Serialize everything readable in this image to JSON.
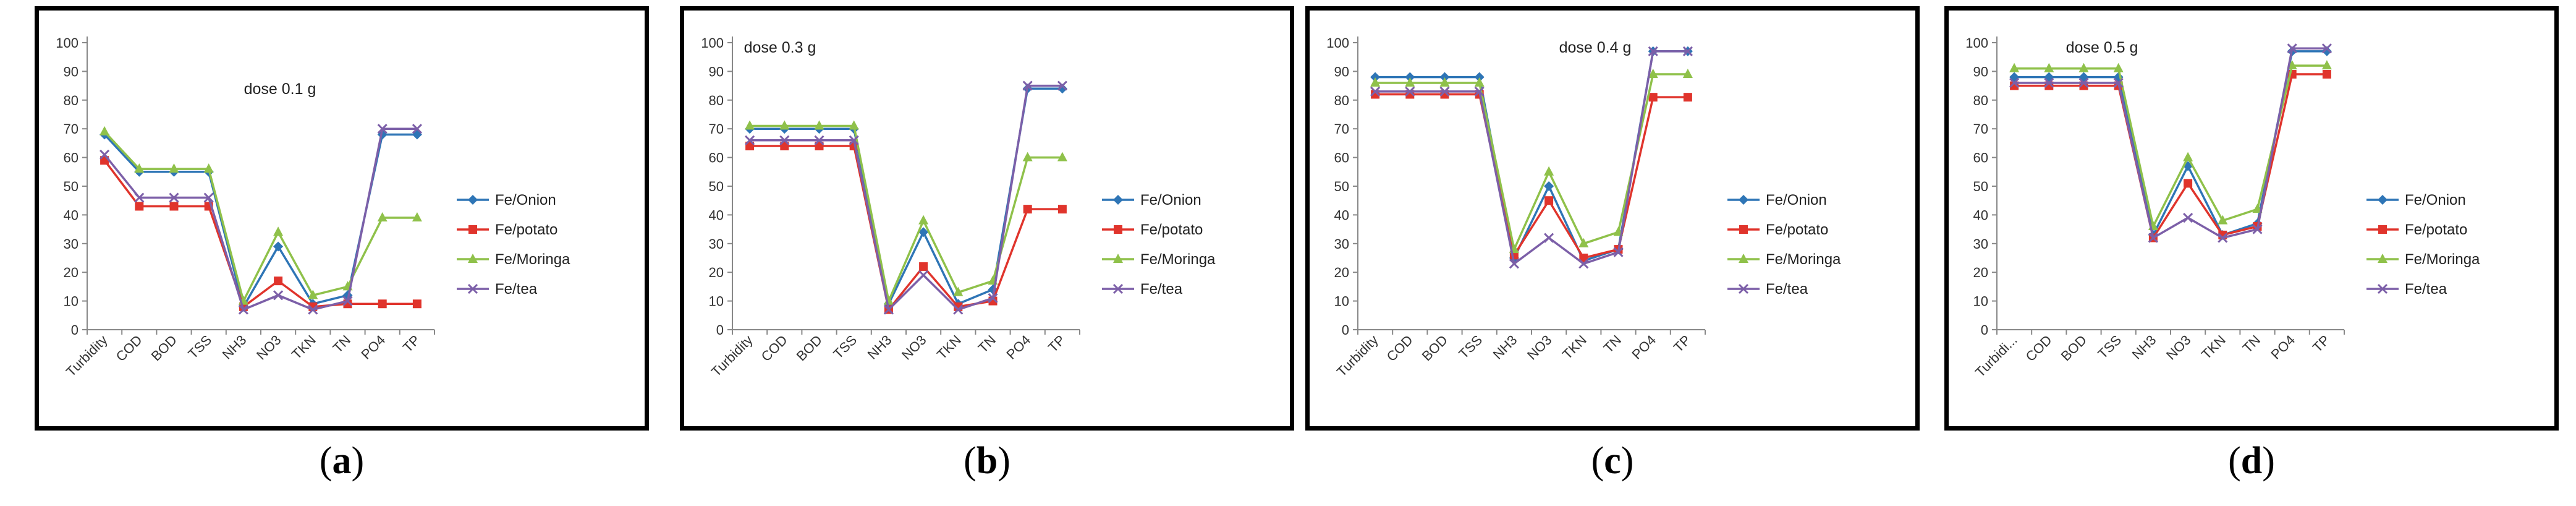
{
  "figure": {
    "panels": [
      {
        "label_open": "(",
        "label_letter": "a",
        "label_close": ")"
      },
      {
        "label_open": "(",
        "label_letter": "b",
        "label_close": ")"
      },
      {
        "label_open": "(",
        "label_letter": "c",
        "label_close": ")"
      },
      {
        "label_open": "(",
        "label_letter": "d",
        "label_close": ")"
      }
    ]
  },
  "colors": {
    "Fe/Onion": "#2e75b6",
    "Fe/potato": "#e0342c",
    "Fe/Moringa": "#8fc14a",
    "Fe/tea": "#7c5fa8"
  },
  "chart_data": [
    {
      "type": "line",
      "title": "dose 0.1 g",
      "categories": [
        "Turbidity",
        "COD",
        "BOD",
        "TSS",
        "NH3",
        "NO3",
        "TKN",
        "TN",
        "PO4",
        "TP"
      ],
      "ylim": [
        0,
        100
      ],
      "yticks": [
        0,
        10,
        20,
        30,
        40,
        50,
        60,
        70,
        80,
        90,
        100
      ],
      "legend_position": "right",
      "series": [
        {
          "name": "Fe/Onion",
          "marker": "diamond",
          "values": [
            68,
            55,
            55,
            55,
            8,
            29,
            9,
            12,
            68,
            68
          ]
        },
        {
          "name": "Fe/potato",
          "marker": "square",
          "values": [
            59,
            43,
            43,
            43,
            8,
            17,
            8,
            9,
            9,
            9
          ]
        },
        {
          "name": "Fe/Moringa",
          "marker": "triangle",
          "values": [
            69,
            56,
            56,
            56,
            10,
            34,
            12,
            15,
            39,
            39
          ]
        },
        {
          "name": "Fe/tea",
          "marker": "x",
          "values": [
            61,
            46,
            46,
            46,
            7,
            12,
            7,
            10,
            70,
            70
          ]
        }
      ]
    },
    {
      "type": "line",
      "title": "dose 0.3 g",
      "categories": [
        "Turbidity",
        "COD",
        "BOD",
        "TSS",
        "NH3",
        "NO3",
        "TKN",
        "TN",
        "PO4",
        "TP"
      ],
      "ylim": [
        0,
        100
      ],
      "yticks": [
        0,
        10,
        20,
        30,
        40,
        50,
        60,
        70,
        80,
        90,
        100
      ],
      "legend_position": "right",
      "series": [
        {
          "name": "Fe/Onion",
          "marker": "diamond",
          "values": [
            70,
            70,
            70,
            70,
            9,
            34,
            9,
            14,
            84,
            84
          ]
        },
        {
          "name": "Fe/potato",
          "marker": "square",
          "values": [
            64,
            64,
            64,
            64,
            7,
            22,
            8,
            10,
            42,
            42
          ]
        },
        {
          "name": "Fe/Moringa",
          "marker": "triangle",
          "values": [
            71,
            71,
            71,
            71,
            10,
            38,
            13,
            17,
            60,
            60
          ]
        },
        {
          "name": "Fe/tea",
          "marker": "x",
          "values": [
            66,
            66,
            66,
            66,
            7,
            19,
            7,
            11,
            85,
            85
          ]
        }
      ]
    },
    {
      "type": "line",
      "title": "dose 0.4 g",
      "categories": [
        "Turbidity",
        "COD",
        "BOD",
        "TSS",
        "NH3",
        "NO3",
        "TKN",
        "TN",
        "PO4",
        "TP"
      ],
      "ylim": [
        0,
        100
      ],
      "yticks": [
        0,
        10,
        20,
        30,
        40,
        50,
        60,
        70,
        80,
        90,
        100
      ],
      "legend_position": "right",
      "series": [
        {
          "name": "Fe/Onion",
          "marker": "diamond",
          "values": [
            88,
            88,
            88,
            88,
            25,
            50,
            24,
            28,
            97,
            97
          ]
        },
        {
          "name": "Fe/potato",
          "marker": "square",
          "values": [
            82,
            82,
            82,
            82,
            26,
            45,
            25,
            28,
            81,
            81
          ]
        },
        {
          "name": "Fe/Moringa",
          "marker": "triangle",
          "values": [
            86,
            86,
            86,
            86,
            28,
            55,
            30,
            34,
            89,
            89
          ]
        },
        {
          "name": "Fe/tea",
          "marker": "x",
          "values": [
            83,
            83,
            83,
            83,
            23,
            32,
            23,
            27,
            97,
            97
          ]
        }
      ]
    },
    {
      "type": "line",
      "title": "dose 0.5 g",
      "categories": [
        "Turbidi...",
        "COD",
        "BOD",
        "TSS",
        "NH3",
        "NO3",
        "TKN",
        "TN",
        "PO4",
        "TP"
      ],
      "ylim": [
        0,
        100
      ],
      "yticks": [
        0,
        10,
        20,
        30,
        40,
        50,
        60,
        70,
        80,
        90,
        100
      ],
      "legend_position": "right",
      "series": [
        {
          "name": "Fe/Onion",
          "marker": "diamond",
          "values": [
            88,
            88,
            88,
            88,
            33,
            57,
            33,
            37,
            97,
            97
          ]
        },
        {
          "name": "Fe/potato",
          "marker": "square",
          "values": [
            85,
            85,
            85,
            85,
            32,
            51,
            33,
            36,
            89,
            89
          ]
        },
        {
          "name": "Fe/Moringa",
          "marker": "triangle",
          "values": [
            91,
            91,
            91,
            91,
            36,
            60,
            38,
            42,
            92,
            92
          ]
        },
        {
          "name": "Fe/tea",
          "marker": "x",
          "values": [
            86,
            86,
            86,
            86,
            32,
            39,
            32,
            35,
            98,
            98
          ]
        }
      ]
    }
  ]
}
